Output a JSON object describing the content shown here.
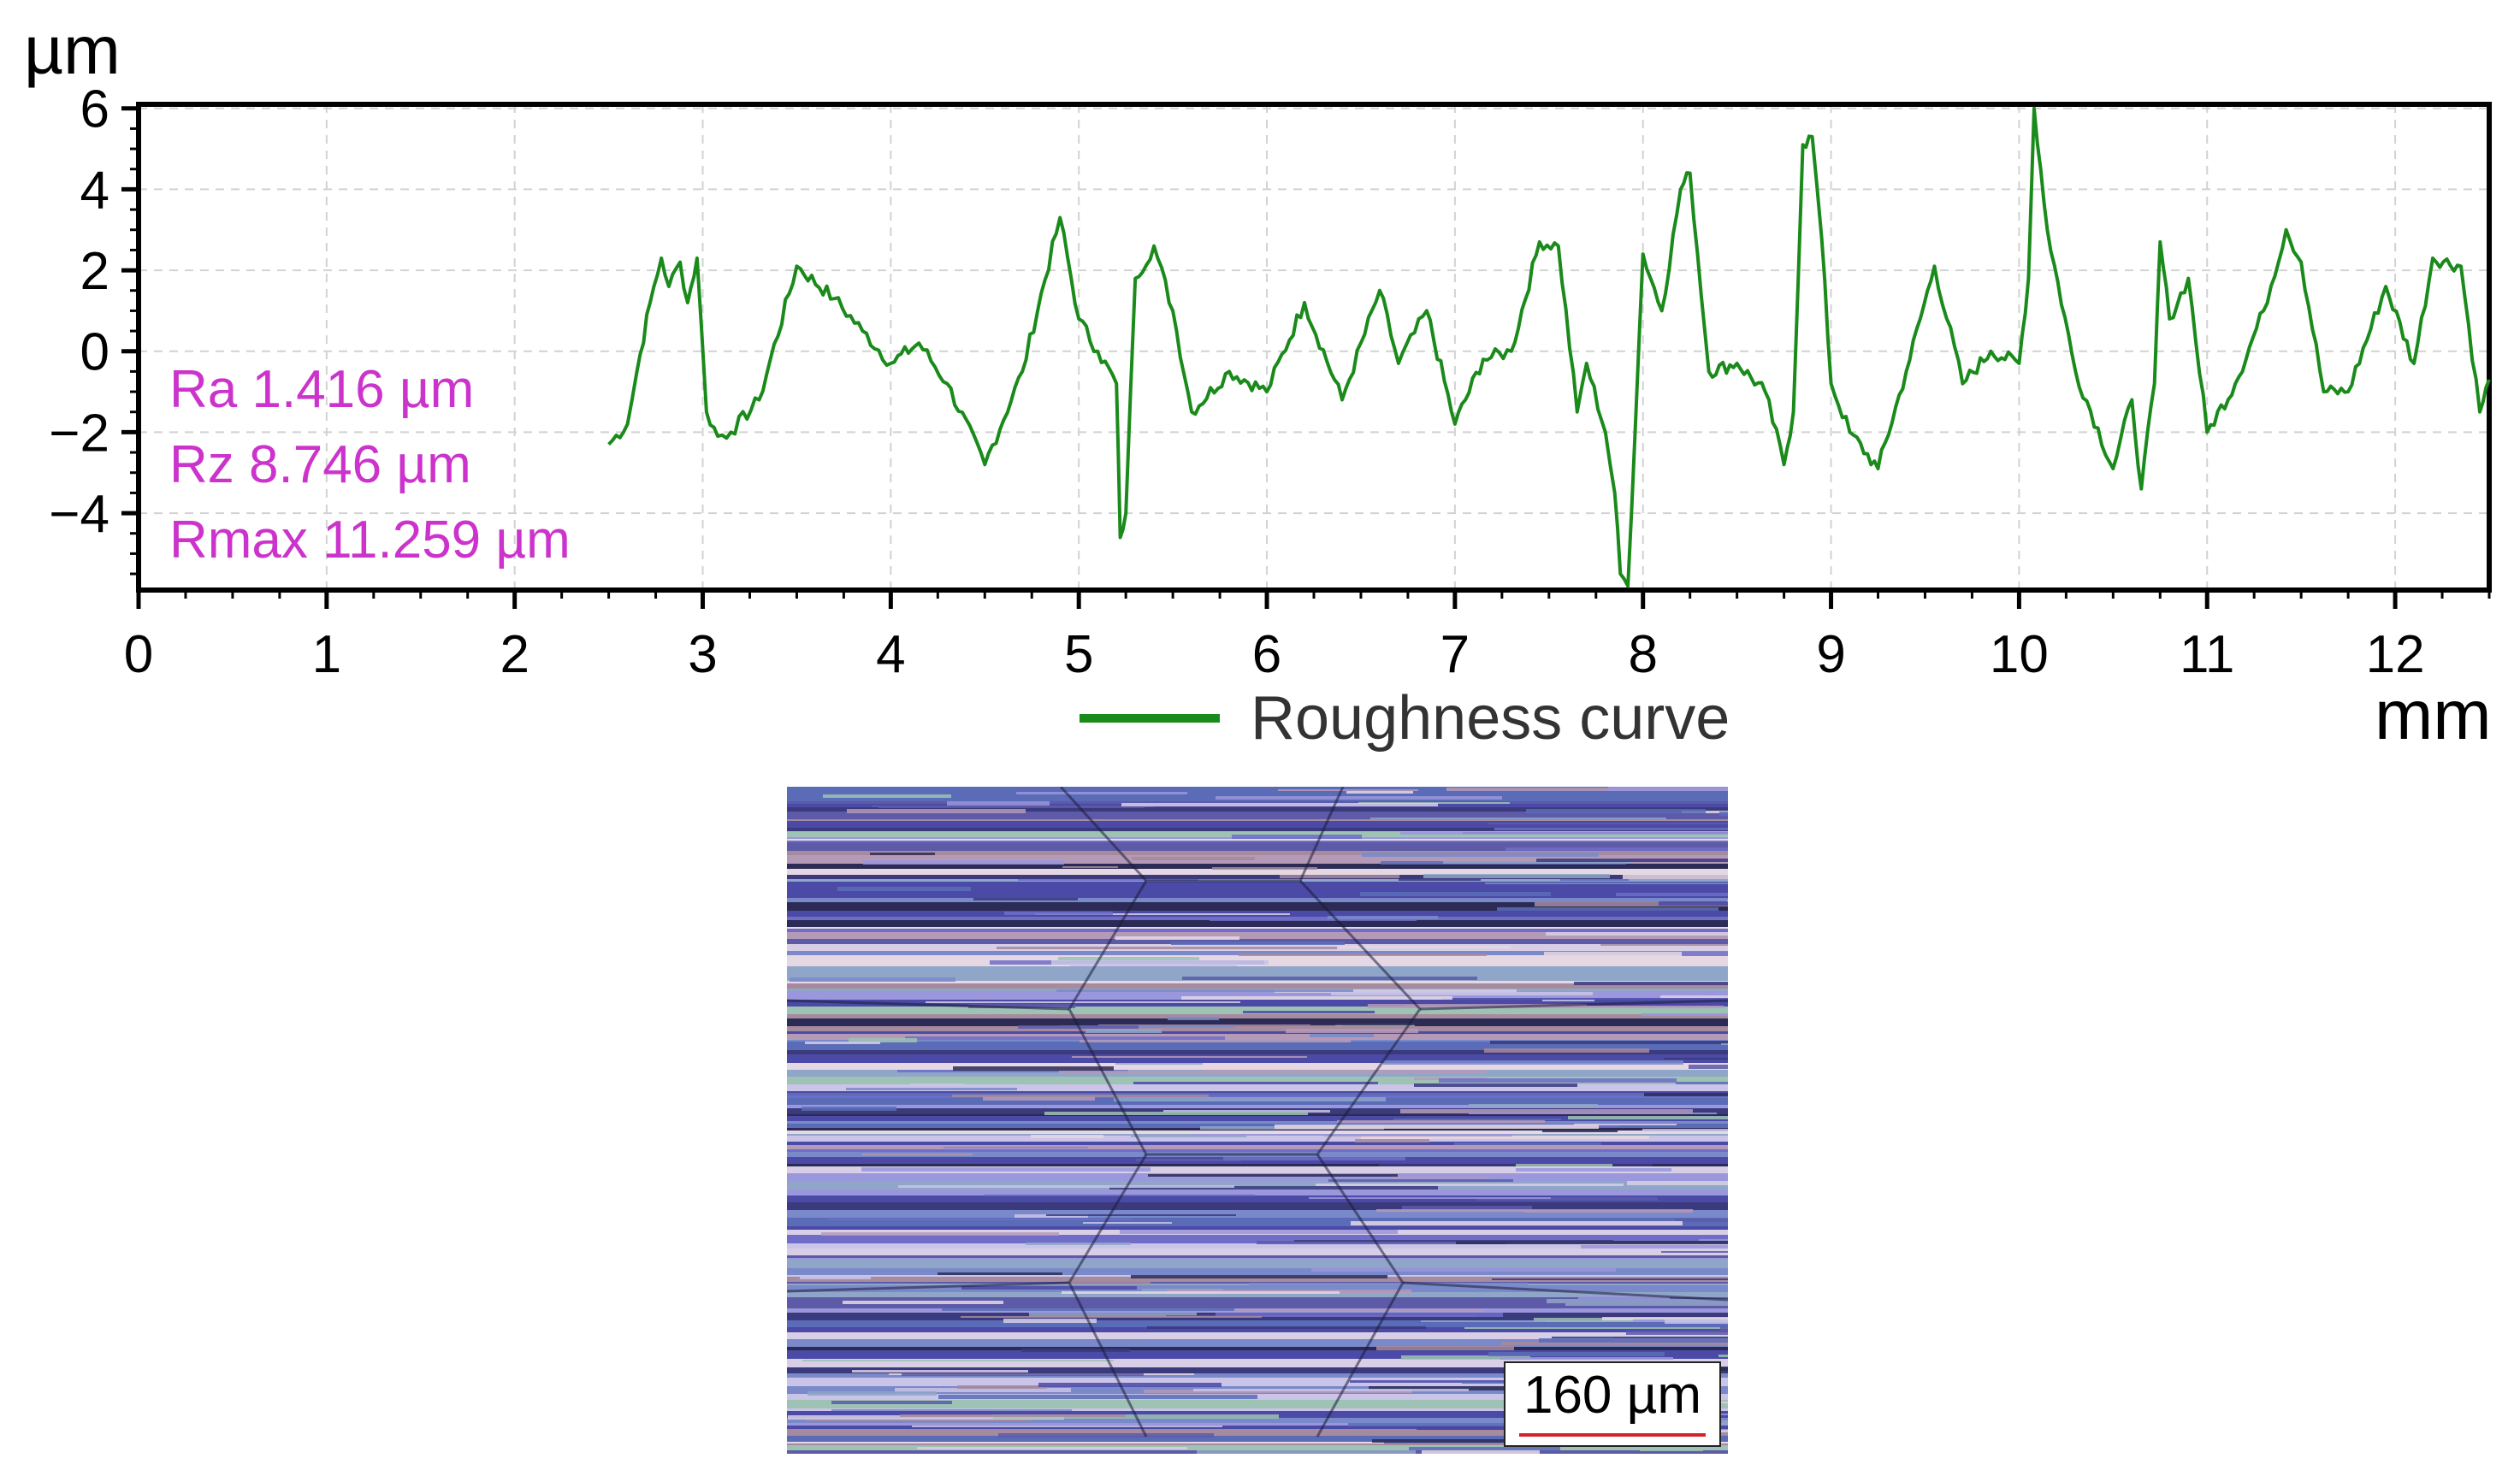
{
  "chart_data": {
    "type": "line",
    "title": "",
    "xlabel": "mm",
    "ylabel": "µm",
    "xlim": [
      0,
      12.5
    ],
    "ylim": [
      -5.9,
      6.1
    ],
    "x_ticks": [
      0,
      1,
      2,
      3,
      4,
      5,
      6,
      7,
      8,
      9,
      10,
      11,
      12
    ],
    "y_ticks": [
      -4,
      -2,
      0,
      2,
      4,
      6
    ],
    "grid": true,
    "legend_position": "bottom-center",
    "annotations": [
      "Ra 1.416 µm",
      "Rz 8.746 µm",
      "Rmax 11.259 µm"
    ],
    "series": [
      {
        "name": "Roughness curve",
        "color": "#1a8a1a",
        "x": [
          2.5,
          2.6,
          2.65,
          2.72,
          2.78,
          2.82,
          2.88,
          2.92,
          2.97,
          3.02,
          3.08,
          3.15,
          3.3,
          3.5,
          3.7,
          3.85,
          4.0,
          4.15,
          4.3,
          4.5,
          4.7,
          4.9,
          5.0,
          5.1,
          5.2,
          5.22,
          5.25,
          5.3,
          5.4,
          5.5,
          5.6,
          5.8,
          6.0,
          6.2,
          6.4,
          6.6,
          6.7,
          6.85,
          7.0,
          7.15,
          7.3,
          7.45,
          7.55,
          7.65,
          7.7,
          7.8,
          7.85,
          7.88,
          7.92,
          8.0,
          8.1,
          8.2,
          8.25,
          8.35,
          8.5,
          8.65,
          8.75,
          8.8,
          8.85,
          8.9,
          8.95,
          9.0,
          9.1,
          9.25,
          9.4,
          9.55,
          9.7,
          9.85,
          10.0,
          10.05,
          10.08,
          10.15,
          10.3,
          10.5,
          10.6,
          10.65,
          10.72,
          10.75,
          10.8,
          10.9,
          11.0,
          11.15,
          11.3,
          11.42,
          11.5,
          11.62,
          11.75,
          11.95,
          12.1,
          12.2,
          12.35,
          12.45,
          12.5
        ],
        "y": [
          -2.3,
          -1.8,
          -0.5,
          1.2,
          2.3,
          1.6,
          2.2,
          1.2,
          2.3,
          -1.5,
          -2.1,
          -2.0,
          -1.2,
          2.1,
          1.3,
          0.5,
          -0.3,
          0.2,
          -0.8,
          -2.8,
          -0.5,
          3.3,
          0.8,
          0.0,
          -0.8,
          -4.6,
          -4.0,
          1.8,
          2.6,
          1.0,
          -1.5,
          -0.5,
          -1.0,
          1.2,
          -1.2,
          1.5,
          -0.3,
          1.0,
          -1.8,
          -0.2,
          0.0,
          2.7,
          2.6,
          -1.5,
          -0.3,
          -2.0,
          -3.5,
          -5.5,
          -5.8,
          2.4,
          1.0,
          4.0,
          4.4,
          -0.5,
          -0.3,
          -1.0,
          -2.8,
          -1.5,
          5.1,
          5.3,
          2.8,
          -0.8,
          -2.0,
          -2.9,
          -0.5,
          2.1,
          -0.8,
          0.0,
          -0.3,
          1.8,
          6.0,
          3.0,
          -0.5,
          -2.9,
          -1.2,
          -3.4,
          -0.8,
          2.7,
          0.8,
          1.8,
          -2.0,
          -0.8,
          1.0,
          3.0,
          2.2,
          -1.0,
          -1.0,
          1.6,
          -0.3,
          2.3,
          2.1,
          -1.5,
          -0.7
        ]
      }
    ]
  },
  "micrograph": {
    "scale_bar_label": "160 µm"
  }
}
